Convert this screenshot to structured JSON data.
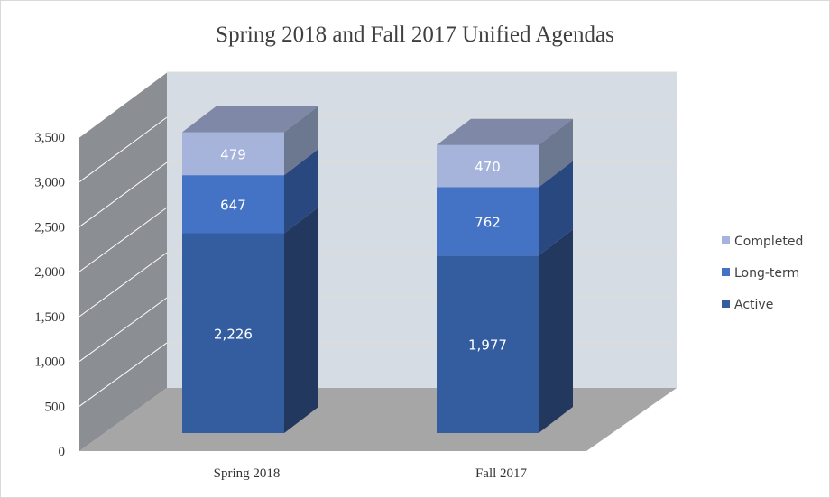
{
  "chart_data": {
    "type": "bar",
    "stacked": true,
    "three_d": true,
    "title": "Spring 2018 and Fall 2017 Unified Agendas",
    "xlabel": "",
    "ylabel": "",
    "categories": [
      "Spring 2018",
      "Fall 2017"
    ],
    "series": [
      {
        "name": "Active",
        "values": [
          2226,
          1977
        ],
        "labels": [
          "2,226",
          "1,977"
        ],
        "color": "#345da0",
        "side": "#22385f"
      },
      {
        "name": "Long-term",
        "values": [
          647,
          762
        ],
        "labels": [
          "647",
          "762"
        ],
        "color": "#4472c4",
        "side": "#2a4880"
      },
      {
        "name": "Completed",
        "values": [
          479,
          470
        ],
        "labels": [
          "479",
          "470"
        ],
        "color": "#a6b4db",
        "side": "#6c7790"
      }
    ],
    "top_color": "#7f88a6",
    "ylim": [
      0,
      3500
    ],
    "yticks": [
      0,
      500,
      1000,
      1500,
      2000,
      2500,
      3000,
      3500
    ],
    "ytick_labels": [
      "0",
      "500",
      "1,000",
      "1,500",
      "2,000",
      "2,500",
      "3,000",
      "3,500"
    ],
    "grid": true,
    "legend": {
      "placement": "right",
      "order": [
        "Completed",
        "Long-term",
        "Active"
      ]
    }
  }
}
